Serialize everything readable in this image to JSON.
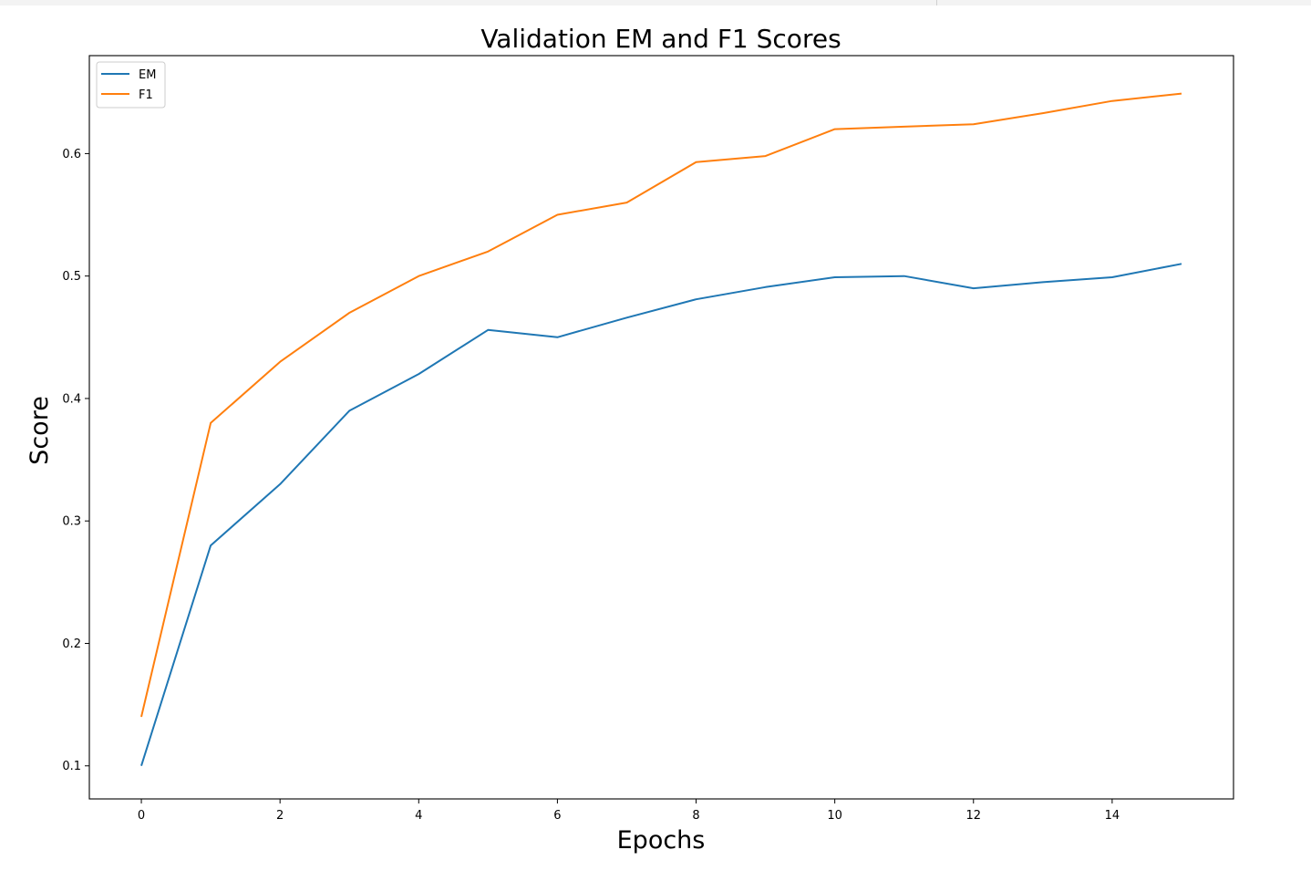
{
  "chart_data": {
    "type": "line",
    "title": "Validation EM and F1 Scores",
    "xlabel": "Epochs",
    "ylabel": "Score",
    "x": [
      0,
      1,
      2,
      3,
      4,
      5,
      6,
      7,
      8,
      9,
      10,
      11,
      12,
      13,
      14,
      15
    ],
    "xticks": [
      0,
      2,
      4,
      6,
      8,
      10,
      12,
      14
    ],
    "yticks": [
      0.1,
      0.2,
      0.3,
      0.4,
      0.5,
      0.6
    ],
    "xlim": [
      -0.75,
      15.75
    ],
    "ylim": [
      0.073,
      0.68
    ],
    "grid": false,
    "legend_position": "upper left",
    "series": [
      {
        "name": "EM",
        "color": "#1f77b4",
        "values": [
          0.1,
          0.28,
          0.33,
          0.39,
          0.42,
          0.456,
          0.45,
          0.466,
          0.481,
          0.491,
          0.499,
          0.5,
          0.49,
          0.495,
          0.499,
          0.51
        ]
      },
      {
        "name": "F1",
        "color": "#ff7f0e",
        "values": [
          0.14,
          0.38,
          0.43,
          0.47,
          0.5,
          0.52,
          0.55,
          0.56,
          0.593,
          0.598,
          0.62,
          0.622,
          0.624,
          0.633,
          0.643,
          0.649
        ]
      }
    ]
  }
}
